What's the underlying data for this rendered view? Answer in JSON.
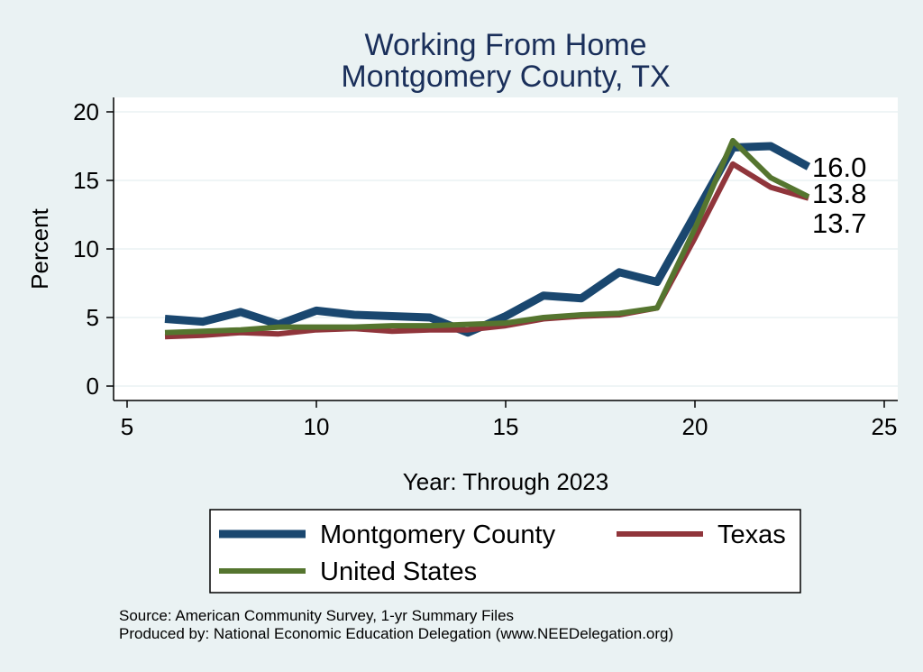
{
  "chart_data": {
    "type": "line",
    "title": "Working From Home",
    "subtitle": "Montgomery County, TX",
    "xlabel": "Year: Through 2023",
    "ylabel": "Percent",
    "xlim": [
      5,
      25
    ],
    "ylim": [
      0,
      20
    ],
    "xticks": [
      5,
      10,
      15,
      20,
      25
    ],
    "yticks": [
      0,
      5,
      10,
      15,
      20
    ],
    "grid": true,
    "legend_position": "bottom",
    "series": [
      {
        "name": "Montgomery County",
        "color": "#1a476f",
        "x": [
          6,
          7,
          8,
          9,
          10,
          11,
          12,
          13,
          14,
          15,
          16,
          17,
          18,
          19,
          20,
          21,
          22,
          23
        ],
        "values": [
          4.9,
          4.7,
          5.4,
          4.5,
          5.5,
          5.2,
          5.1,
          5.0,
          3.9,
          5.1,
          6.6,
          6.4,
          8.3,
          7.6,
          12.5,
          17.4,
          17.5,
          16.0
        ],
        "end_label": "16.0"
      },
      {
        "name": "Texas",
        "color": "#90353b",
        "x": [
          6,
          7,
          8,
          9,
          10,
          11,
          12,
          13,
          14,
          15,
          16,
          17,
          18,
          19,
          20,
          21,
          22,
          23
        ],
        "values": [
          3.6,
          3.7,
          3.9,
          3.8,
          4.1,
          4.2,
          4.0,
          4.1,
          4.1,
          4.4,
          4.9,
          5.1,
          5.2,
          5.7,
          10.8,
          16.2,
          14.5,
          13.7
        ],
        "end_label": "13.7"
      },
      {
        "name": "United States",
        "color": "#55752f",
        "x": [
          6,
          7,
          8,
          9,
          10,
          11,
          12,
          13,
          14,
          15,
          16,
          17,
          18,
          19,
          20,
          21,
          22,
          23
        ],
        "values": [
          3.9,
          4.0,
          4.1,
          4.3,
          4.3,
          4.3,
          4.4,
          4.4,
          4.5,
          4.6,
          5.0,
          5.2,
          5.3,
          5.7,
          11.5,
          17.9,
          15.2,
          13.8
        ],
        "end_label": "13.8"
      }
    ],
    "notes": [
      "Source: American Community Survey, 1-yr Summary Files",
      "Produced by: National Economic Education Delegation (www.NEEDelegation.org)"
    ]
  }
}
